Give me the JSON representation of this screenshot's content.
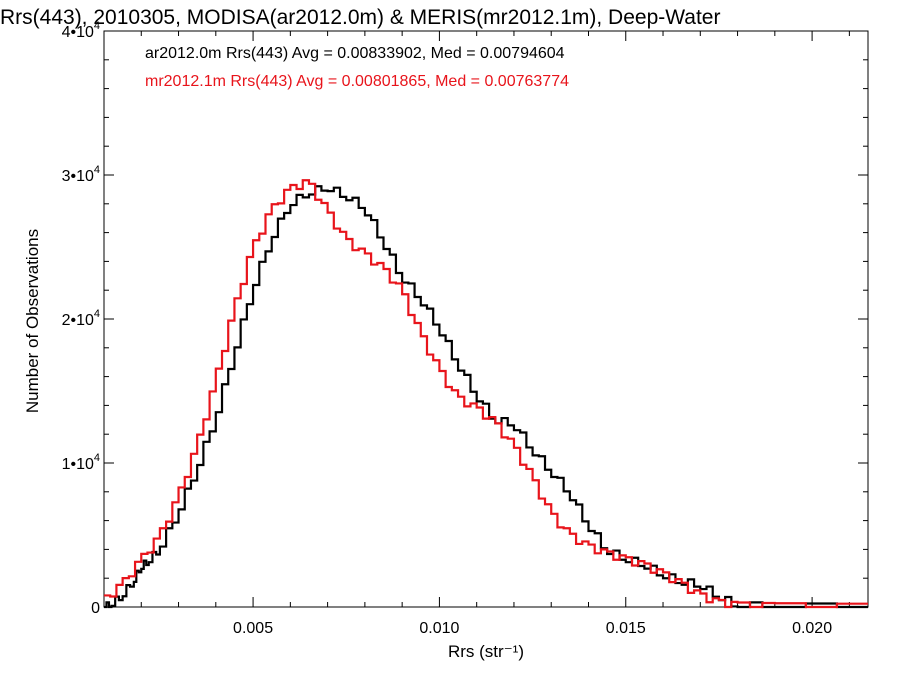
{
  "chart_data": {
    "type": "line",
    "step": true,
    "title": "Rrs(443), 2010305, MODISA(ar2012.0m) & MERIS(mr2012.1m), Deep-Water",
    "xlabel": "Rrs (str⁻¹)",
    "ylabel": "Number of Observations",
    "xlim": [
      0.001,
      0.0215
    ],
    "ylim": [
      0,
      40000
    ],
    "x_tick_labels": [
      "0.005",
      "0.010",
      "0.015",
      "0.020"
    ],
    "x_ticks": [
      0.005,
      0.01,
      0.015,
      0.02
    ],
    "y_ticks": [
      0,
      10000,
      20000,
      30000,
      40000
    ],
    "y_tick_labels": [
      {
        "base": "0",
        "exp": ""
      },
      {
        "base": "1•10",
        "exp": "4"
      },
      {
        "base": "2•10",
        "exp": "4"
      },
      {
        "base": "3•10",
        "exp": "4"
      },
      {
        "base": "4•10",
        "exp": "4"
      }
    ],
    "grid": false,
    "legend_position": "top-left",
    "series": [
      {
        "label": "ar2012.0m Rrs(443) Avg = 0.00833902, Med = 0.00794604",
        "color": "#000000",
        "points": [
          [
            0.001,
            0
          ],
          [
            0.0012,
            200
          ],
          [
            0.0015,
            800
          ],
          [
            0.0018,
            1800
          ],
          [
            0.002,
            2800
          ],
          [
            0.0022,
            3200
          ],
          [
            0.0025,
            4000
          ],
          [
            0.003,
            6500
          ],
          [
            0.0035,
            9500
          ],
          [
            0.004,
            13000
          ],
          [
            0.0045,
            17500
          ],
          [
            0.005,
            22000
          ],
          [
            0.0055,
            25500
          ],
          [
            0.006,
            28000
          ],
          [
            0.0065,
            28800
          ],
          [
            0.007,
            29200
          ],
          [
            0.0075,
            28600
          ],
          [
            0.008,
            27800
          ],
          [
            0.0085,
            25500
          ],
          [
            0.009,
            23000
          ],
          [
            0.0095,
            21500
          ],
          [
            0.01,
            19500
          ],
          [
            0.0105,
            17000
          ],
          [
            0.011,
            14800
          ],
          [
            0.0115,
            13000
          ],
          [
            0.012,
            12800
          ],
          [
            0.0125,
            11000
          ],
          [
            0.013,
            9500
          ],
          [
            0.0135,
            8000
          ],
          [
            0.014,
            5800
          ],
          [
            0.0145,
            4000
          ],
          [
            0.015,
            3400
          ],
          [
            0.0155,
            3000
          ],
          [
            0.016,
            2300
          ],
          [
            0.0165,
            1800
          ],
          [
            0.017,
            1600
          ],
          [
            0.0175,
            800
          ],
          [
            0.018,
            150
          ],
          [
            0.019,
            50
          ],
          [
            0.0215,
            0
          ]
        ]
      },
      {
        "label": "mr2012.1m Rrs(443) Avg = 0.00801865, Med = 0.00763774",
        "color": "#e8141b",
        "points": [
          [
            0.001,
            400
          ],
          [
            0.0015,
            1500
          ],
          [
            0.002,
            3200
          ],
          [
            0.0025,
            4800
          ],
          [
            0.003,
            7500
          ],
          [
            0.0035,
            11000
          ],
          [
            0.004,
            15500
          ],
          [
            0.0045,
            20500
          ],
          [
            0.005,
            24800
          ],
          [
            0.0055,
            27500
          ],
          [
            0.006,
            29000
          ],
          [
            0.0065,
            29500
          ],
          [
            0.007,
            27500
          ],
          [
            0.0075,
            25500
          ],
          [
            0.008,
            24500
          ],
          [
            0.0085,
            23500
          ],
          [
            0.009,
            22000
          ],
          [
            0.0095,
            19000
          ],
          [
            0.01,
            16500
          ],
          [
            0.0105,
            14500
          ],
          [
            0.011,
            13800
          ],
          [
            0.0115,
            12800
          ],
          [
            0.012,
            11200
          ],
          [
            0.0125,
            9000
          ],
          [
            0.013,
            6500
          ],
          [
            0.0135,
            5000
          ],
          [
            0.014,
            4200
          ],
          [
            0.0145,
            3700
          ],
          [
            0.015,
            3300
          ],
          [
            0.0155,
            2900
          ],
          [
            0.016,
            2300
          ],
          [
            0.0165,
            1600
          ],
          [
            0.017,
            800
          ],
          [
            0.0175,
            300
          ],
          [
            0.018,
            100
          ],
          [
            0.019,
            50
          ],
          [
            0.0215,
            0
          ]
        ]
      }
    ]
  }
}
